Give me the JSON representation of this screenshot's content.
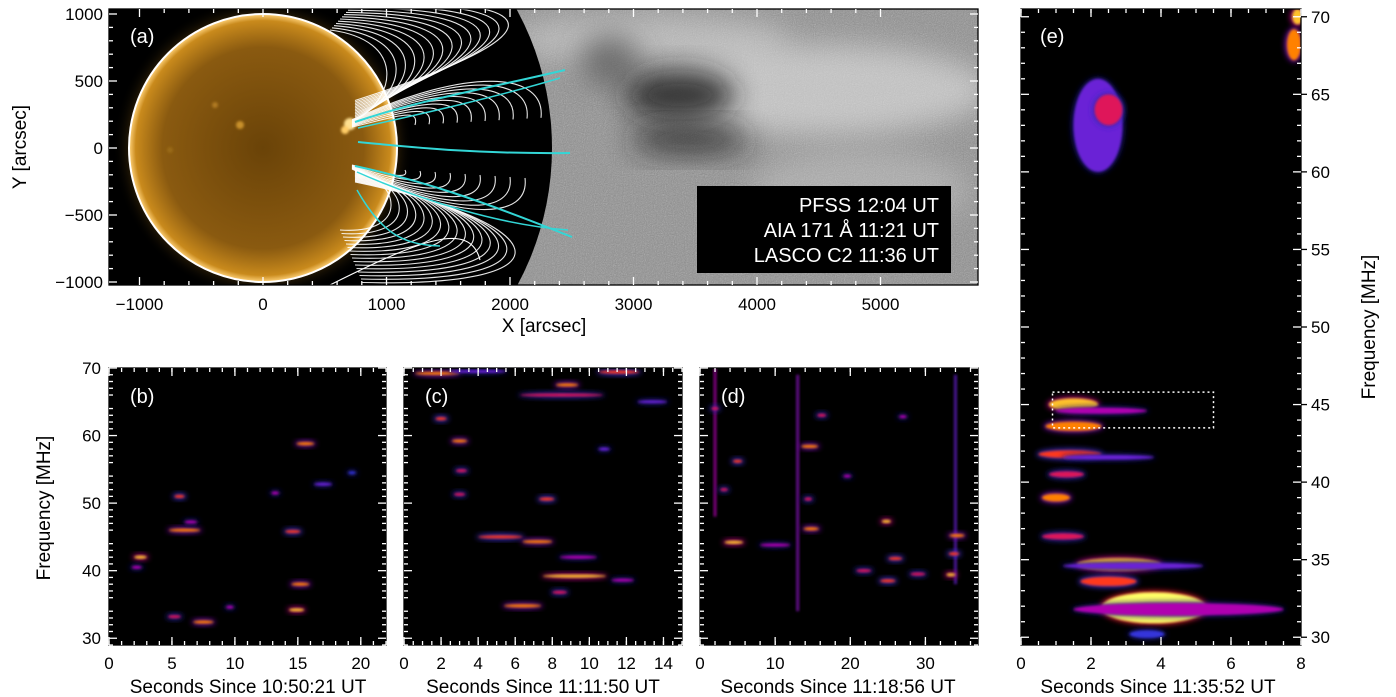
{
  "figure": {
    "panels": {
      "a": {
        "label": "(a)",
        "xlabel": "X [arcsec]",
        "ylabel": "Y [arcsec]",
        "xticks": [
          "−1000",
          "0",
          "1000",
          "2000",
          "3000",
          "4000",
          "5000"
        ],
        "yticks": [
          "1000",
          "500",
          "0",
          "−500",
          "−1000"
        ],
        "annotations": [
          "PFSS 12:04 UT",
          "AIA 171 Å 11:21 UT",
          "LASCO C2 11:36 UT"
        ],
        "colors": {
          "sun": "#c98a1c",
          "limb": "#ffffff",
          "open_field": "#33d6d6",
          "closed_field": "#ffffff",
          "coronagraph": "#8c8c8c"
        }
      },
      "b": {
        "label": "(b)",
        "ylabel": "Frequency [MHz]",
        "xlabel": "Seconds Since 10:50:21 UT",
        "xticks": [
          "0",
          "5",
          "10",
          "15",
          "20"
        ],
        "yticks": [
          "70",
          "60",
          "50",
          "40",
          "30"
        ]
      },
      "c": {
        "label": "(c)",
        "xlabel": "Seconds Since 11:11:50 UT",
        "xticks": [
          "0",
          "2",
          "4",
          "6",
          "8",
          "10",
          "12",
          "14"
        ]
      },
      "d": {
        "label": "(d)",
        "xlabel": "Seconds Since 11:18:56 UT",
        "xticks": [
          "0",
          "10",
          "20",
          "30"
        ]
      },
      "e": {
        "label": "(e)",
        "xlabel": "Seconds Since 11:35:52 UT",
        "ylabel": "Frequency [MHz]",
        "xticks": [
          "0",
          "2",
          "4",
          "6",
          "8"
        ],
        "yticks": [
          "70",
          "65",
          "60",
          "55",
          "50",
          "45",
          "40",
          "35",
          "30"
        ]
      }
    },
    "colormap": [
      "#000000",
      "#1a1a80",
      "#3b3bf0",
      "#b000b0",
      "#ff2020",
      "#ff9900",
      "#ffff66"
    ]
  },
  "chart_data": [
    {
      "type": "heatmap",
      "title": "",
      "xlabel": "Seconds Since 10:50:21 UT",
      "ylabel": "Frequency [MHz]",
      "xlim": [
        0,
        22
      ],
      "ylim": [
        29,
        70
      ],
      "bursts": [
        {
          "t": 2.5,
          "f": 42.0,
          "dt": 1.0,
          "level": 0.9
        },
        {
          "t": 2.2,
          "f": 40.5,
          "dt": 0.8,
          "level": 0.5
        },
        {
          "t": 5.6,
          "f": 51.0,
          "dt": 0.8,
          "level": 0.7
        },
        {
          "t": 6.0,
          "f": 46.0,
          "dt": 2.5,
          "level": 0.8
        },
        {
          "t": 6.5,
          "f": 47.2,
          "dt": 1.0,
          "level": 0.5
        },
        {
          "t": 5.2,
          "f": 33.2,
          "dt": 1.0,
          "level": 0.6
        },
        {
          "t": 7.5,
          "f": 32.4,
          "dt": 1.6,
          "level": 0.8
        },
        {
          "t": 9.6,
          "f": 34.6,
          "dt": 0.6,
          "level": 0.5
        },
        {
          "t": 13.2,
          "f": 51.5,
          "dt": 0.6,
          "level": 0.5
        },
        {
          "t": 14.6,
          "f": 45.8,
          "dt": 1.2,
          "level": 0.7
        },
        {
          "t": 15.6,
          "f": 58.8,
          "dt": 1.4,
          "level": 0.8
        },
        {
          "t": 15.2,
          "f": 38.0,
          "dt": 1.4,
          "level": 0.8
        },
        {
          "t": 14.9,
          "f": 34.2,
          "dt": 1.2,
          "level": 0.9
        },
        {
          "t": 17.0,
          "f": 52.8,
          "dt": 1.4,
          "level": 0.4
        },
        {
          "t": 19.3,
          "f": 54.5,
          "dt": 0.6,
          "level": 0.3
        }
      ]
    },
    {
      "type": "heatmap",
      "title": "",
      "xlabel": "Seconds Since 11:11:50 UT",
      "ylabel": "",
      "xlim": [
        0,
        15
      ],
      "ylim": [
        29,
        70
      ],
      "bursts": [
        {
          "t": 1.8,
          "f": 69.2,
          "dt": 2.4,
          "level": 0.8
        },
        {
          "t": 4.0,
          "f": 69.5,
          "dt": 3.0,
          "level": 0.4
        },
        {
          "t": 8.5,
          "f": 66.0,
          "dt": 4.5,
          "level": 0.6
        },
        {
          "t": 8.8,
          "f": 67.5,
          "dt": 1.2,
          "level": 0.8
        },
        {
          "t": 11.6,
          "f": 69.4,
          "dt": 2.2,
          "level": 0.7
        },
        {
          "t": 13.4,
          "f": 65.0,
          "dt": 1.6,
          "level": 0.4
        },
        {
          "t": 2.0,
          "f": 62.5,
          "dt": 0.6,
          "level": 0.7
        },
        {
          "t": 3.0,
          "f": 59.2,
          "dt": 0.8,
          "level": 0.8
        },
        {
          "t": 3.1,
          "f": 54.8,
          "dt": 0.6,
          "level": 0.6
        },
        {
          "t": 3.0,
          "f": 51.3,
          "dt": 0.6,
          "level": 0.6
        },
        {
          "t": 5.2,
          "f": 45.0,
          "dt": 2.4,
          "level": 0.7
        },
        {
          "t": 7.2,
          "f": 44.3,
          "dt": 1.6,
          "level": 0.8
        },
        {
          "t": 7.7,
          "f": 50.6,
          "dt": 0.8,
          "level": 0.7
        },
        {
          "t": 9.4,
          "f": 42.0,
          "dt": 2.0,
          "level": 0.5
        },
        {
          "t": 9.2,
          "f": 39.2,
          "dt": 3.4,
          "level": 0.9
        },
        {
          "t": 8.4,
          "f": 36.8,
          "dt": 0.8,
          "level": 0.6
        },
        {
          "t": 6.4,
          "f": 34.8,
          "dt": 2.0,
          "level": 0.8
        },
        {
          "t": 11.8,
          "f": 38.6,
          "dt": 1.2,
          "level": 0.5
        },
        {
          "t": 10.8,
          "f": 58.0,
          "dt": 0.6,
          "level": 0.4
        }
      ]
    },
    {
      "type": "heatmap",
      "title": "",
      "xlabel": "Seconds Since 11:18:56 UT",
      "ylabel": "",
      "xlim": [
        0,
        37
      ],
      "ylim": [
        29,
        70
      ],
      "bursts": [
        {
          "t": 4.5,
          "f": 44.2,
          "dt": 2.5,
          "level": 0.9
        },
        {
          "t": 10.0,
          "f": 43.8,
          "dt": 4.0,
          "level": 0.5
        },
        {
          "t": 14.8,
          "f": 46.2,
          "dt": 2.0,
          "level": 0.8
        },
        {
          "t": 14.6,
          "f": 58.4,
          "dt": 2.2,
          "level": 0.8
        },
        {
          "t": 14.4,
          "f": 50.6,
          "dt": 1.0,
          "level": 0.6
        },
        {
          "t": 16.2,
          "f": 63.0,
          "dt": 1.2,
          "level": 0.6
        },
        {
          "t": 21.8,
          "f": 40.0,
          "dt": 2.0,
          "level": 0.6
        },
        {
          "t": 24.8,
          "f": 47.3,
          "dt": 1.2,
          "level": 0.9
        },
        {
          "t": 26.0,
          "f": 41.8,
          "dt": 1.8,
          "level": 0.7
        },
        {
          "t": 25.0,
          "f": 38.5,
          "dt": 2.0,
          "level": 0.7
        },
        {
          "t": 29.0,
          "f": 39.5,
          "dt": 2.0,
          "level": 0.6
        },
        {
          "t": 33.4,
          "f": 39.4,
          "dt": 1.2,
          "level": 0.9
        },
        {
          "t": 34.2,
          "f": 45.2,
          "dt": 2.0,
          "level": 0.8
        },
        {
          "t": 33.8,
          "f": 42.5,
          "dt": 1.4,
          "level": 0.7
        },
        {
          "t": 2.0,
          "f": 64.0,
          "dt": 1.0,
          "level": 0.6
        },
        {
          "t": 5.0,
          "f": 56.2,
          "dt": 1.2,
          "level": 0.7
        },
        {
          "t": 3.2,
          "f": 52.0,
          "dt": 1.0,
          "level": 0.6
        },
        {
          "t": 19.6,
          "f": 54.0,
          "dt": 1.0,
          "level": 0.5
        },
        {
          "t": 27.0,
          "f": 62.8,
          "dt": 1.0,
          "level": 0.5
        }
      ],
      "streaks": [
        {
          "t": 2.0,
          "f0": 48.0,
          "f1": 70.0,
          "level": 0.5
        },
        {
          "t": 13.0,
          "f0": 34.0,
          "f1": 69.0,
          "level": 0.45
        },
        {
          "t": 34.0,
          "f0": 38.0,
          "f1": 69.0,
          "level": 0.4
        }
      ]
    },
    {
      "type": "heatmap",
      "title": "",
      "xlabel": "Seconds Since 11:35:52 UT",
      "ylabel": "Frequency [MHz]",
      "xlim": [
        0,
        8
      ],
      "ylim": [
        29.5,
        70.5
      ],
      "highlight": {
        "t0": 0.9,
        "t1": 5.5,
        "f0": 43.5,
        "f1": 45.8
      },
      "bursts": [
        {
          "t": 2.2,
          "f": 63.0,
          "dt": 1.4,
          "df": 6.0,
          "level": 0.4
        },
        {
          "t": 2.5,
          "f": 64.0,
          "dt": 0.8,
          "df": 2.0,
          "level": 0.6
        },
        {
          "t": 7.9,
          "f": 70.0,
          "dt": 0.3,
          "df": 1.0,
          "level": 0.9
        },
        {
          "t": 7.8,
          "f": 68.2,
          "dt": 0.4,
          "df": 2.0,
          "level": 0.8
        },
        {
          "t": 1.5,
          "f": 45.0,
          "dt": 1.4,
          "df": 0.8,
          "level": 0.9
        },
        {
          "t": 2.3,
          "f": 44.6,
          "dt": 2.6,
          "df": 0.4,
          "level": 0.5
        },
        {
          "t": 1.5,
          "f": 43.6,
          "dt": 1.6,
          "df": 0.6,
          "level": 0.8
        },
        {
          "t": 1.4,
          "f": 41.8,
          "dt": 1.8,
          "df": 0.5,
          "level": 0.7
        },
        {
          "t": 2.5,
          "f": 41.6,
          "dt": 2.6,
          "df": 0.3,
          "level": 0.4
        },
        {
          "t": 1.3,
          "f": 40.5,
          "dt": 1.0,
          "df": 0.4,
          "level": 0.6
        },
        {
          "t": 1.0,
          "f": 39.0,
          "dt": 0.8,
          "df": 0.5,
          "level": 0.8
        },
        {
          "t": 1.2,
          "f": 36.5,
          "dt": 1.2,
          "df": 0.4,
          "level": 0.6
        },
        {
          "t": 2.8,
          "f": 34.7,
          "dt": 2.4,
          "df": 0.8,
          "level": 0.9
        },
        {
          "t": 3.2,
          "f": 34.6,
          "dt": 4.0,
          "df": 0.4,
          "level": 0.4
        },
        {
          "t": 2.5,
          "f": 33.6,
          "dt": 1.6,
          "df": 0.6,
          "level": 0.7
        },
        {
          "t": 3.8,
          "f": 31.9,
          "dt": 3.0,
          "df": 2.0,
          "level": 1.0
        },
        {
          "t": 4.5,
          "f": 31.8,
          "dt": 6.0,
          "df": 0.8,
          "level": 0.5
        },
        {
          "t": 3.6,
          "f": 30.2,
          "dt": 1.0,
          "df": 0.5,
          "level": 0.3
        }
      ]
    }
  ]
}
